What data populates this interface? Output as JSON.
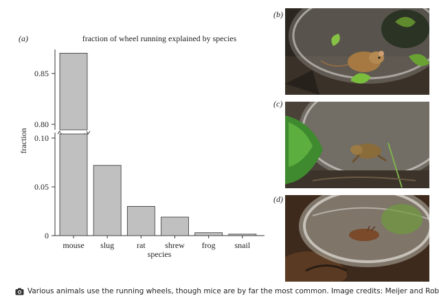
{
  "panels": {
    "a": "(a)",
    "b": "(b)",
    "c": "(c)",
    "d": "(d)"
  },
  "chart_data": {
    "type": "bar",
    "title": "fraction of wheel running explained by species",
    "xlabel": "species",
    "ylabel": "fraction",
    "categories": [
      "mouse",
      "slug",
      "rat",
      "shrew",
      "frog",
      "snail"
    ],
    "values": [
      0.87,
      0.072,
      0.03,
      0.019,
      0.003,
      0.0015
    ],
    "axis_break": {
      "lower_range": [
        0,
        0.1
      ],
      "upper_range": [
        0.8,
        0.88
      ]
    },
    "y_ticks_lower": [
      {
        "value": 0,
        "label": "0"
      },
      {
        "value": 0.05,
        "label": "0.05"
      },
      {
        "value": 0.1,
        "label": "0.10"
      }
    ],
    "y_ticks_upper": [
      {
        "value": 0.8,
        "label": "0.80"
      },
      {
        "value": 0.85,
        "label": "0.85"
      }
    ],
    "bar_color": "#c0c0c0",
    "bar_edge_color": "#333333",
    "grid": false
  },
  "photos": [
    {
      "panel": "b",
      "subject": "mouse in running wheel"
    },
    {
      "panel": "c",
      "subject": "frog in running wheel"
    },
    {
      "panel": "d",
      "subject": "slug in running wheel"
    }
  ],
  "caption": {
    "icon": "camera-icon",
    "text": "Various animals use the running wheels, though mice are by far the most common. Image credits: Meijer and Robbers."
  }
}
